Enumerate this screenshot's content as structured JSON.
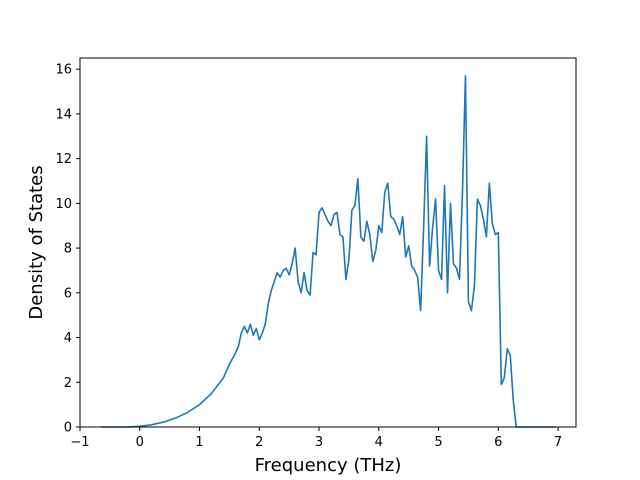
{
  "chart_data": {
    "type": "line",
    "title": "",
    "xlabel": "Frequency (THz)",
    "ylabel": "Density of States",
    "xlim": [
      -1,
      7.3
    ],
    "ylim": [
      0,
      16.5
    ],
    "grid": false,
    "legend": "none",
    "xticks": [
      -1,
      0,
      1,
      2,
      3,
      4,
      5,
      6,
      7
    ],
    "xtick_labels": [
      "−1",
      "0",
      "1",
      "2",
      "3",
      "4",
      "5",
      "6",
      "7"
    ],
    "yticks": [
      0,
      2,
      4,
      6,
      8,
      10,
      12,
      14,
      16
    ],
    "ytick_labels": [
      "0",
      "2",
      "4",
      "6",
      "8",
      "10",
      "12",
      "14",
      "16"
    ],
    "series": [
      {
        "color": "#1f77b4",
        "x": [
          -0.65,
          -0.2,
          0.0,
          0.2,
          0.4,
          0.6,
          0.8,
          1.0,
          1.2,
          1.4,
          1.5,
          1.6,
          1.65,
          1.7,
          1.75,
          1.8,
          1.85,
          1.9,
          1.95,
          2.0,
          2.05,
          2.1,
          2.15,
          2.2,
          2.25,
          2.3,
          2.35,
          2.4,
          2.45,
          2.5,
          2.55,
          2.6,
          2.65,
          2.7,
          2.75,
          2.8,
          2.85,
          2.9,
          2.95,
          3.0,
          3.05,
          3.1,
          3.15,
          3.2,
          3.25,
          3.3,
          3.35,
          3.4,
          3.45,
          3.5,
          3.55,
          3.6,
          3.65,
          3.7,
          3.75,
          3.8,
          3.85,
          3.9,
          3.95,
          4.0,
          4.05,
          4.1,
          4.15,
          4.2,
          4.25,
          4.3,
          4.35,
          4.4,
          4.45,
          4.5,
          4.55,
          4.6,
          4.65,
          4.7,
          4.75,
          4.8,
          4.85,
          4.9,
          4.95,
          5.0,
          5.05,
          5.1,
          5.15,
          5.2,
          5.25,
          5.3,
          5.35,
          5.4,
          5.45,
          5.5,
          5.55,
          5.6,
          5.65,
          5.7,
          5.75,
          5.8,
          5.85,
          5.9,
          5.95,
          6.0,
          6.05,
          6.1,
          6.15,
          6.2,
          6.25,
          6.3,
          6.35,
          6.5,
          6.95
        ],
        "y": [
          0.0,
          0.0,
          0.03,
          0.1,
          0.22,
          0.4,
          0.65,
          1.0,
          1.5,
          2.2,
          2.8,
          3.3,
          3.6,
          4.2,
          4.5,
          4.2,
          4.6,
          4.1,
          4.4,
          3.9,
          4.2,
          4.6,
          5.5,
          6.1,
          6.5,
          6.9,
          6.7,
          7.0,
          7.1,
          6.8,
          7.3,
          8.0,
          6.5,
          6.0,
          6.9,
          6.1,
          5.9,
          7.8,
          7.7,
          9.6,
          9.8,
          9.5,
          9.2,
          9.0,
          9.5,
          9.6,
          8.6,
          8.5,
          6.6,
          7.5,
          9.7,
          9.9,
          11.1,
          8.5,
          8.3,
          9.2,
          8.6,
          7.4,
          7.9,
          9.0,
          8.7,
          10.5,
          10.9,
          9.4,
          9.3,
          9.0,
          8.6,
          9.4,
          7.6,
          8.1,
          7.2,
          7.0,
          6.7,
          5.2,
          8.9,
          13.0,
          7.2,
          8.9,
          10.2,
          7.0,
          6.6,
          10.8,
          6.0,
          10.0,
          7.3,
          7.1,
          6.6,
          10.5,
          15.7,
          5.6,
          5.2,
          6.3,
          10.2,
          9.9,
          9.3,
          8.5,
          10.9,
          9.1,
          8.6,
          8.7,
          1.9,
          2.2,
          3.5,
          3.2,
          1.2,
          0.0,
          0.0,
          0.0,
          0.0
        ]
      }
    ]
  }
}
